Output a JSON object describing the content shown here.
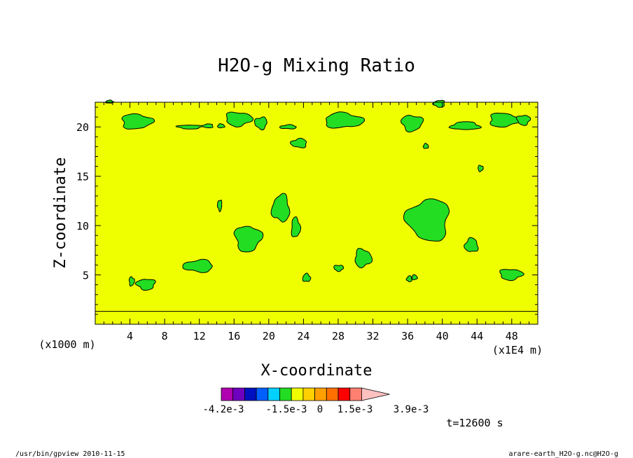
{
  "chart_data": {
    "type": "contour",
    "title": "H2O-g Mixing Ratio",
    "xlabel": "X-coordinate",
    "ylabel": "Z-coordinate",
    "x_unit_label": "(x1E4 m)",
    "y_unit_label": "(x1000 m)",
    "xlim": [
      0,
      51
    ],
    "ylim": [
      0,
      22.5
    ],
    "x_ticks": [
      4,
      8,
      12,
      16,
      20,
      24,
      28,
      32,
      36,
      40,
      44,
      48
    ],
    "y_ticks": [
      5,
      10,
      15,
      20
    ],
    "x_tick_labels": [
      "4",
      "8",
      "12",
      "16",
      "20",
      "24",
      "28",
      "32",
      "36",
      "40",
      "44",
      "48"
    ],
    "y_tick_labels": [
      "5",
      "10",
      "15",
      "20"
    ],
    "background_level_color": "#f0ff00",
    "contour_fill_color": "#22dd22",
    "surface_line_z": 1.3,
    "regions": [
      {
        "id": "r1",
        "x": [
          1.2,
          2.1
        ],
        "z": [
          22.4,
          22.7
        ]
      },
      {
        "id": "r2",
        "x": [
          3.0,
          6.5
        ],
        "z": [
          19.8,
          21.3
        ]
      },
      {
        "id": "r3",
        "x": [
          9.5,
          12.3
        ],
        "z": [
          19.8,
          20.2
        ]
      },
      {
        "id": "r4",
        "x": [
          12.4,
          13.6
        ],
        "z": [
          19.9,
          20.3
        ]
      },
      {
        "id": "r5",
        "x": [
          14.1,
          14.9
        ],
        "z": [
          19.9,
          20.3
        ]
      },
      {
        "id": "r6",
        "x": [
          15.0,
          18.0
        ],
        "z": [
          20.1,
          21.5
        ]
      },
      {
        "id": "r7",
        "x": [
          18.4,
          19.8
        ],
        "z": [
          19.8,
          21.0
        ]
      },
      {
        "id": "r8",
        "x": [
          21.3,
          23.2
        ],
        "z": [
          19.8,
          20.2
        ]
      },
      {
        "id": "r9",
        "x": [
          26.4,
          30.8
        ],
        "z": [
          19.9,
          21.4
        ]
      },
      {
        "id": "r10",
        "x": [
          35.3,
          37.7
        ],
        "z": [
          19.6,
          21.2
        ]
      },
      {
        "id": "r11",
        "x": [
          39.0,
          40.3
        ],
        "z": [
          22.0,
          22.7
        ]
      },
      {
        "id": "r12",
        "x": [
          41.0,
          44.3
        ],
        "z": [
          19.7,
          20.5
        ]
      },
      {
        "id": "r13",
        "x": [
          45.4,
          48.7
        ],
        "z": [
          20.0,
          21.4
        ]
      },
      {
        "id": "r14",
        "x": [
          48.6,
          50.1
        ],
        "z": [
          20.2,
          21.2
        ]
      },
      {
        "id": "r15",
        "x": [
          22.6,
          24.4
        ],
        "z": [
          17.9,
          18.8
        ]
      },
      {
        "id": "r16",
        "x": [
          37.8,
          38.4
        ],
        "z": [
          17.8,
          18.3
        ]
      },
      {
        "id": "r17",
        "x": [
          44.1,
          44.7
        ],
        "z": [
          15.5,
          16.1
        ]
      },
      {
        "id": "r18",
        "x": [
          14.1,
          14.6
        ],
        "z": [
          11.5,
          12.6
        ]
      },
      {
        "id": "r19",
        "x": [
          20.4,
          22.4
        ],
        "z": [
          10.4,
          13.1
        ]
      },
      {
        "id": "r20",
        "x": [
          22.6,
          23.6
        ],
        "z": [
          8.8,
          10.8
        ]
      },
      {
        "id": "r21",
        "x": [
          16.1,
          19.1
        ],
        "z": [
          7.4,
          10.0
        ]
      },
      {
        "id": "r22",
        "x": [
          36.0,
          40.8
        ],
        "z": [
          8.5,
          12.7
        ]
      },
      {
        "id": "r23",
        "x": [
          42.6,
          44.1
        ],
        "z": [
          7.3,
          8.7
        ]
      },
      {
        "id": "r24",
        "x": [
          29.9,
          31.8
        ],
        "z": [
          5.8,
          7.6
        ]
      },
      {
        "id": "r25",
        "x": [
          27.5,
          28.6
        ],
        "z": [
          5.4,
          6.0
        ]
      },
      {
        "id": "r26",
        "x": [
          10.2,
          13.6
        ],
        "z": [
          5.3,
          6.5
        ]
      },
      {
        "id": "r27",
        "x": [
          23.9,
          24.8
        ],
        "z": [
          4.3,
          5.1
        ]
      },
      {
        "id": "r28",
        "x": [
          3.9,
          4.5
        ],
        "z": [
          3.9,
          4.8
        ]
      },
      {
        "id": "r29",
        "x": [
          4.8,
          6.9
        ],
        "z": [
          3.5,
          4.6
        ]
      },
      {
        "id": "r30",
        "x": [
          35.9,
          36.5
        ],
        "z": [
          4.3,
          4.9
        ]
      },
      {
        "id": "r31",
        "x": [
          36.5,
          37.1
        ],
        "z": [
          4.5,
          5.0
        ]
      },
      {
        "id": "r32",
        "x": [
          46.6,
          49.2
        ],
        "z": [
          4.5,
          5.6
        ]
      }
    ],
    "colorbar": {
      "colors": [
        "#b000b0",
        "#7000c0",
        "#0010c0",
        "#0060ff",
        "#00d0ff",
        "#22dd22",
        "#f0ff00",
        "#ffd000",
        "#ffa000",
        "#ff7000",
        "#ff0000",
        "#ff8070",
        "#ffc0c0"
      ],
      "tick_labels": [
        "-4.2e-3",
        "-1.5e-3",
        "0",
        "1.5e-3",
        "3.9e-3"
      ]
    },
    "time_label": "t=12600 s"
  },
  "footer": {
    "left": "/usr/bin/gpview  2010-11-15",
    "right": "arare-earth_H2O-g.nc@H2O-g"
  }
}
